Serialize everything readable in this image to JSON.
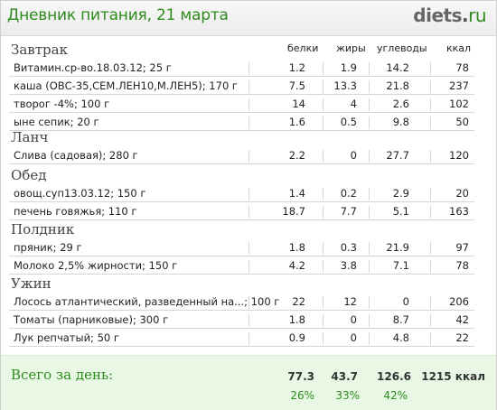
{
  "header": {
    "title": "Дневник питания, 21 марта",
    "logo_main": "diets",
    "logo_dot": ".",
    "logo_tld": "ru"
  },
  "columns": {
    "protein": "белки",
    "fat": "жиры",
    "carbs": "углеводы",
    "kcal": "ккал"
  },
  "meals": [
    {
      "name": "Завтрак",
      "items": [
        {
          "name": "Витамин.ср-во.18.03.12; 25 г",
          "protein": "1.2",
          "fat": "1.9",
          "carbs": "14.2",
          "kcal": "78"
        },
        {
          "name": "каша (ОВС-35,СЕМ.ЛЕН10,М.ЛЕН5); 170 г",
          "protein": "7.5",
          "fat": "13.3",
          "carbs": "21.8",
          "kcal": "237"
        },
        {
          "name": "творог -4%; 100 г",
          "protein": "14",
          "fat": "4",
          "carbs": "2.6",
          "kcal": "102"
        },
        {
          "name": "ыне сепик; 20 г",
          "protein": "1.6",
          "fat": "0.5",
          "carbs": "9.8",
          "kcal": "50"
        }
      ]
    },
    {
      "name": "Ланч",
      "items": [
        {
          "name": "Слива (садовая); 280 г",
          "protein": "2.2",
          "fat": "0",
          "carbs": "27.7",
          "kcal": "120"
        }
      ]
    },
    {
      "name": "Обед",
      "items": [
        {
          "name": "овощ.суп13.03.12; 150 г",
          "protein": "1.4",
          "fat": "0.2",
          "carbs": "2.9",
          "kcal": "20"
        },
        {
          "name": "печень говяжья; 110 г",
          "protein": "18.7",
          "fat": "7.7",
          "carbs": "5.1",
          "kcal": "163"
        }
      ]
    },
    {
      "name": "Полдник",
      "items": [
        {
          "name": "пряник; 29 г",
          "protein": "1.8",
          "fat": "0.3",
          "carbs": "21.9",
          "kcal": "97"
        },
        {
          "name": "Молоко 2,5% жирности; 150 г",
          "protein": "4.2",
          "fat": "3.8",
          "carbs": "7.1",
          "kcal": "78"
        }
      ]
    },
    {
      "name": "Ужин",
      "items": [
        {
          "name": "Лосось атлантический, разведенный на...; 100 г",
          "protein": "22",
          "fat": "12",
          "carbs": "0",
          "kcal": "206"
        },
        {
          "name": "Томаты (парниковые); 300 г",
          "protein": "1.8",
          "fat": "0",
          "carbs": "8.7",
          "kcal": "42"
        },
        {
          "name": "Лук репчатый; 50 г",
          "protein": "0.9",
          "fat": "0",
          "carbs": "4.8",
          "kcal": "22"
        }
      ]
    }
  ],
  "totals": {
    "label": "Всего за день:",
    "protein": "77.3",
    "fat": "43.7",
    "carbs": "126.6",
    "kcal": "1215 ккал",
    "protein_pct": "26%",
    "fat_pct": "33%",
    "carbs_pct": "42%"
  },
  "colors": {
    "accent_green": "#2e8b1e",
    "totals_bg": "#e8f8e4",
    "row_border": "#d6d6d6"
  }
}
